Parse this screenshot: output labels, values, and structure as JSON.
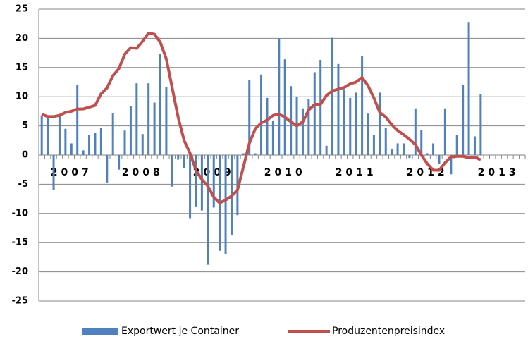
{
  "chart_data": {
    "type": "bar_line",
    "categories": [
      null,
      null,
      null,
      null,
      null,
      "2007",
      null,
      null,
      null,
      null,
      null,
      null,
      null,
      null,
      null,
      null,
      null,
      "2008",
      null,
      null,
      null,
      null,
      null,
      null,
      null,
      null,
      null,
      null,
      null,
      "2009",
      null,
      null,
      null,
      null,
      null,
      null,
      null,
      null,
      null,
      null,
      null,
      "2010",
      null,
      null,
      null,
      null,
      null,
      null,
      null,
      null,
      null,
      null,
      null,
      "2011",
      null,
      null,
      null,
      null,
      null,
      null,
      null,
      null,
      null,
      null,
      null,
      "2012",
      null,
      null,
      null,
      null,
      null,
      null,
      null,
      null,
      null,
      null,
      null,
      "2013",
      null,
      null,
      null,
      null
    ],
    "series": [
      {
        "name": "Exportwert je Container",
        "type": "bar",
        "color": "#4f81bd",
        "values": [
          6.8,
          6.5,
          -6,
          6.8,
          4.5,
          2,
          12,
          0.8,
          3.4,
          3.8,
          4.7,
          -4.7,
          7.2,
          -2.5,
          4.2,
          8.4,
          12.3,
          3.6,
          12.3,
          9,
          17.3,
          11.6,
          -5.4,
          -0.8,
          -2.3,
          -10.8,
          -8.8,
          -9.5,
          -18.8,
          -9,
          -16.4,
          -17,
          -13.7,
          -10.3,
          0.3,
          12.8,
          0.3,
          13.8,
          9.8,
          5.8,
          20,
          16.4,
          11.8,
          10,
          8,
          9.6,
          14.2,
          16.3,
          1.6,
          20.1,
          15.6,
          11.3,
          9.8,
          10.7,
          16.9,
          7.1,
          3.4,
          10.7,
          4.7,
          1,
          2,
          2,
          -0.5,
          8,
          4.3,
          0.3,
          2,
          -1.5,
          8,
          -3.3,
          3.4,
          12,
          22.8,
          3.2,
          10.5,
          null,
          null,
          null,
          null,
          null,
          null,
          null
        ]
      },
      {
        "name": "Produzentenpreisindex",
        "type": "line",
        "color": "#c0504d",
        "values": [
          7,
          6.6,
          6.6,
          6.8,
          7.3,
          7.5,
          7.9,
          7.9,
          8.2,
          8.5,
          10.5,
          11.5,
          13.6,
          14.8,
          17.3,
          18.4,
          18.3,
          19.5,
          20.9,
          20.7,
          19.3,
          16.5,
          11.5,
          6.5,
          2.5,
          0.3,
          -2.6,
          -4.2,
          -5.3,
          -7.2,
          -8.2,
          -7.7,
          -7,
          -6,
          -2,
          2,
          4.5,
          5.5,
          6,
          6.8,
          7,
          6.5,
          5.7,
          5,
          5.7,
          7.7,
          8.7,
          8.7,
          10.2,
          11,
          11.3,
          11.6,
          12.2,
          12.5,
          13.3,
          11.9,
          9.8,
          7.3,
          6.5,
          5.2,
          4.2,
          3.5,
          2.7,
          1.8,
          0,
          -1.5,
          -2.6,
          -2.6,
          -1.3,
          -0.3,
          -0.2,
          -0.2,
          -0.5,
          -0.4,
          -0.8,
          null,
          null,
          null,
          null,
          null,
          null,
          null
        ]
      }
    ],
    "ylim": [
      -25,
      25
    ],
    "yticks": [
      -25,
      -20,
      -15,
      -10,
      -5,
      0,
      5,
      10,
      15,
      20,
      25
    ],
    "grid": true,
    "legend": "bottom"
  }
}
